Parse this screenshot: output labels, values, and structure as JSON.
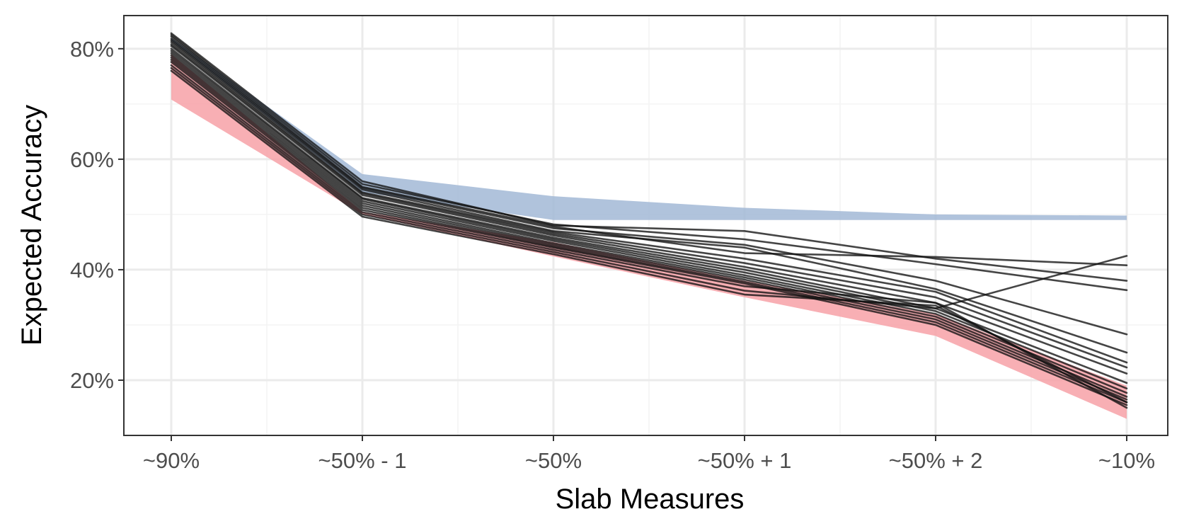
{
  "chart_data": {
    "type": "line",
    "title": "",
    "xlabel": "Slab Measures",
    "ylabel": "Expected Accuracy",
    "categories": [
      "~90%",
      "~50% - 1",
      "~50%",
      "~50% + 1",
      "~50% + 2",
      "~10%"
    ],
    "ylim": [
      0.1,
      0.86
    ],
    "yticks": [
      0.2,
      0.4,
      0.6,
      0.8
    ],
    "ytick_labels": [
      "20%",
      "40%",
      "60%",
      "80%"
    ],
    "grid": true,
    "colors": {
      "upper_band": "#a2b9d6",
      "lower_band": "#f7a1a7",
      "line": "#111111",
      "grid_major": "#ebebeb",
      "grid_minor": "#f4f4f4",
      "panel_border": "#333333",
      "tick_text": "#4d4d4d"
    },
    "bands": [
      {
        "id": "upper",
        "color": "#a2b9d6",
        "upper": [
          0.82,
          0.573,
          0.533,
          0.512,
          0.5,
          0.498
        ],
        "lower": [
          0.815,
          0.54,
          0.49,
          0.49,
          0.49,
          0.49
        ]
      },
      {
        "id": "lower",
        "color": "#f7a1a7",
        "upper": [
          0.79,
          0.505,
          0.45,
          0.38,
          0.32,
          0.19
        ],
        "lower": [
          0.708,
          0.5,
          0.424,
          0.35,
          0.28,
          0.13
        ]
      }
    ],
    "series": [
      {
        "values": [
          0.828,
          0.56,
          0.48,
          0.47,
          0.42,
          0.38
        ]
      },
      {
        "values": [
          0.825,
          0.555,
          0.482,
          0.455,
          0.41,
          0.363
        ]
      },
      {
        "values": [
          0.822,
          0.55,
          0.478,
          0.43,
          0.423,
          0.408
        ]
      },
      {
        "values": [
          0.818,
          0.548,
          0.475,
          0.445,
          0.38,
          0.283
        ]
      },
      {
        "values": [
          0.815,
          0.545,
          0.47,
          0.44,
          0.365,
          0.25
        ]
      },
      {
        "values": [
          0.812,
          0.54,
          0.468,
          0.42,
          0.36,
          0.232
        ]
      },
      {
        "values": [
          0.808,
          0.538,
          0.465,
          0.412,
          0.35,
          0.223
        ]
      },
      {
        "values": [
          0.805,
          0.535,
          0.462,
          0.405,
          0.34,
          0.212
        ]
      },
      {
        "values": [
          0.8,
          0.53,
          0.458,
          0.4,
          0.33,
          0.195
        ]
      },
      {
        "values": [
          0.796,
          0.528,
          0.455,
          0.395,
          0.325,
          0.185
        ]
      },
      {
        "values": [
          0.792,
          0.524,
          0.452,
          0.39,
          0.32,
          0.177
        ]
      },
      {
        "values": [
          0.788,
          0.52,
          0.448,
          0.386,
          0.315,
          0.17
        ]
      },
      {
        "values": [
          0.784,
          0.516,
          0.445,
          0.382,
          0.31,
          0.165
        ]
      },
      {
        "values": [
          0.78,
          0.512,
          0.442,
          0.378,
          0.305,
          0.16
        ]
      },
      {
        "values": [
          0.776,
          0.508,
          0.44,
          0.375,
          0.3,
          0.155
        ]
      },
      {
        "values": [
          0.77,
          0.504,
          0.436,
          0.37,
          0.34,
          0.15
        ]
      },
      {
        "values": [
          0.765,
          0.5,
          0.432,
          0.362,
          0.33,
          0.425
        ]
      },
      {
        "values": [
          0.76,
          0.496,
          0.428,
          0.355,
          0.335,
          0.16
        ]
      }
    ]
  }
}
